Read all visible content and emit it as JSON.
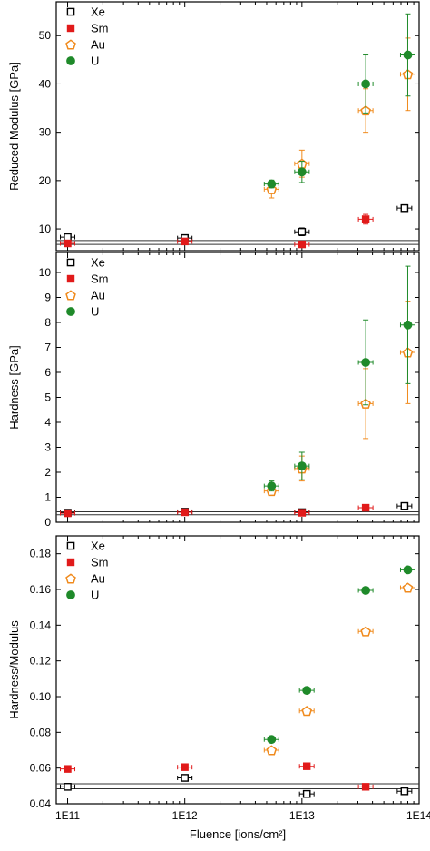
{
  "colors": {
    "xe": "#000000",
    "sm": "#e11a1a",
    "au": "#f08a1c",
    "u": "#1f8a2a",
    "frame": "#000000",
    "refline": "#333333"
  },
  "chart_data": [
    {
      "type": "scatter",
      "title": "",
      "xlabel": "",
      "ylabel": "Reduced Modulus [GPa]",
      "xscale": "log",
      "xlim": [
        80000000000,
        100000000000000
      ],
      "ylim": [
        5.5,
        57
      ],
      "yticks": [
        10,
        20,
        30,
        40,
        50
      ],
      "yticklabels": [
        "10",
        "20",
        "30",
        "40",
        "50"
      ],
      "reference_lines": [
        6.8,
        7.6
      ],
      "legend": {
        "position": "top-left",
        "entries": [
          "Xe",
          "Sm",
          "Au",
          "U"
        ]
      },
      "series": [
        {
          "name": "Xe",
          "marker": "open-square",
          "points": [
            [
              100000000000.0,
              8.3,
              0.6
            ],
            [
              1000000000000.0,
              8.1,
              0.5
            ],
            [
              10000000000000.0,
              9.4,
              0.8
            ],
            [
              75000000000000.0,
              14.3,
              0.7
            ]
          ]
        },
        {
          "name": "Sm",
          "marker": "filled-square",
          "points": [
            [
              100000000000.0,
              7.0,
              0.4
            ],
            [
              1000000000000.0,
              7.4,
              0.4
            ],
            [
              10000000000000.0,
              6.8,
              0.4
            ],
            [
              35000000000000.0,
              12.0,
              1.0
            ]
          ]
        },
        {
          "name": "Au",
          "marker": "open-pentagon",
          "points": [
            [
              5500000000000.0,
              18.2,
              1.8
            ],
            [
              10000000000000.0,
              23.5,
              2.8
            ],
            [
              35000000000000.0,
              34.5,
              4.5
            ],
            [
              80000000000000.0,
              42.0,
              7.5
            ]
          ]
        },
        {
          "name": "U",
          "marker": "filled-circle",
          "points": [
            [
              5500000000000.0,
              19.3,
              0.8
            ],
            [
              10000000000000.0,
              21.8,
              2.2
            ],
            [
              35000000000000.0,
              40.0,
              6.0
            ],
            [
              80000000000000.0,
              46.0,
              8.5
            ]
          ]
        }
      ]
    },
    {
      "type": "scatter",
      "title": "",
      "xlabel": "",
      "ylabel": "Hardness [GPa]",
      "xscale": "log",
      "xlim": [
        80000000000,
        100000000000000
      ],
      "ylim": [
        0,
        10.8
      ],
      "yticks": [
        0,
        1,
        2,
        3,
        4,
        5,
        6,
        7,
        8,
        9,
        10
      ],
      "yticklabels": [
        "0",
        "1",
        "2",
        "3",
        "4",
        "5",
        "6",
        "7",
        "8",
        "9",
        "10"
      ],
      "reference_lines": [
        0.3,
        0.42
      ],
      "legend": {
        "position": "top-left",
        "entries": [
          "Xe",
          "Sm",
          "Au",
          "U"
        ]
      },
      "series": [
        {
          "name": "Xe",
          "marker": "open-square",
          "points": [
            [
              100000000000.0,
              0.38,
              0.04
            ],
            [
              1000000000000.0,
              0.42,
              0.04
            ],
            [
              10000000000000.0,
              0.4,
              0.04
            ],
            [
              75000000000000.0,
              0.65,
              0.06
            ]
          ]
        },
        {
          "name": "Sm",
          "marker": "filled-square",
          "points": [
            [
              100000000000.0,
              0.36,
              0.04
            ],
            [
              1000000000000.0,
              0.4,
              0.04
            ],
            [
              10000000000000.0,
              0.38,
              0.04
            ],
            [
              35000000000000.0,
              0.58,
              0.06
            ]
          ]
        },
        {
          "name": "Au",
          "marker": "open-pentagon",
          "points": [
            [
              5500000000000.0,
              1.25,
              0.15
            ],
            [
              10000000000000.0,
              2.15,
              0.5
            ],
            [
              35000000000000.0,
              4.75,
              1.4
            ],
            [
              80000000000000.0,
              6.8,
              2.05
            ]
          ]
        },
        {
          "name": "U",
          "marker": "filled-circle",
          "points": [
            [
              5500000000000.0,
              1.45,
              0.2
            ],
            [
              10000000000000.0,
              2.25,
              0.55
            ],
            [
              35000000000000.0,
              6.4,
              1.7
            ],
            [
              80000000000000.0,
              7.9,
              2.35
            ]
          ]
        }
      ]
    },
    {
      "type": "scatter",
      "title": "",
      "xlabel": "Fluence [ions/cm²]",
      "ylabel": "Hardness/Modulus",
      "xscale": "log",
      "xlim": [
        80000000000,
        100000000000000
      ],
      "ylim": [
        0.04,
        0.19
      ],
      "yticks": [
        0.04,
        0.06,
        0.08,
        0.1,
        0.12,
        0.14,
        0.16,
        0.18
      ],
      "yticklabels": [
        "0.04",
        "0.06",
        "0.08",
        "0.10",
        "0.12",
        "0.14",
        "0.16",
        "0.18"
      ],
      "xticks": [
        100000000000,
        1000000000000,
        10000000000000,
        100000000000000
      ],
      "xticklabels": [
        "1E11",
        "1E12",
        "1E13",
        "1E14"
      ],
      "reference_lines": [
        0.0484,
        0.0512
      ],
      "legend": {
        "position": "top-left",
        "entries": [
          "Xe",
          "Sm",
          "Au",
          "U"
        ]
      },
      "series": [
        {
          "name": "Xe",
          "marker": "open-square",
          "points": [
            [
              100000000000.0,
              0.0495,
              0
            ],
            [
              1000000000000.0,
              0.0545,
              0
            ],
            [
              11000000000000.0,
              0.0455,
              0
            ],
            [
              75000000000000.0,
              0.047,
              0
            ]
          ]
        },
        {
          "name": "Sm",
          "marker": "filled-square",
          "points": [
            [
              100000000000.0,
              0.0595,
              0
            ],
            [
              1000000000000.0,
              0.0605,
              0
            ],
            [
              11000000000000.0,
              0.061,
              0
            ],
            [
              35000000000000.0,
              0.0495,
              0
            ]
          ]
        },
        {
          "name": "Au",
          "marker": "open-pentagon",
          "points": [
            [
              5500000000000.0,
              0.07,
              0
            ],
            [
              11000000000000.0,
              0.092,
              0
            ],
            [
              35000000000000.0,
              0.1365,
              0
            ],
            [
              80000000000000.0,
              0.161,
              0
            ]
          ]
        },
        {
          "name": "U",
          "marker": "filled-circle",
          "points": [
            [
              5500000000000.0,
              0.076,
              0
            ],
            [
              11000000000000.0,
              0.1035,
              0
            ],
            [
              35000000000000.0,
              0.1595,
              0
            ],
            [
              80000000000000.0,
              0.171,
              0
            ]
          ]
        }
      ]
    }
  ]
}
